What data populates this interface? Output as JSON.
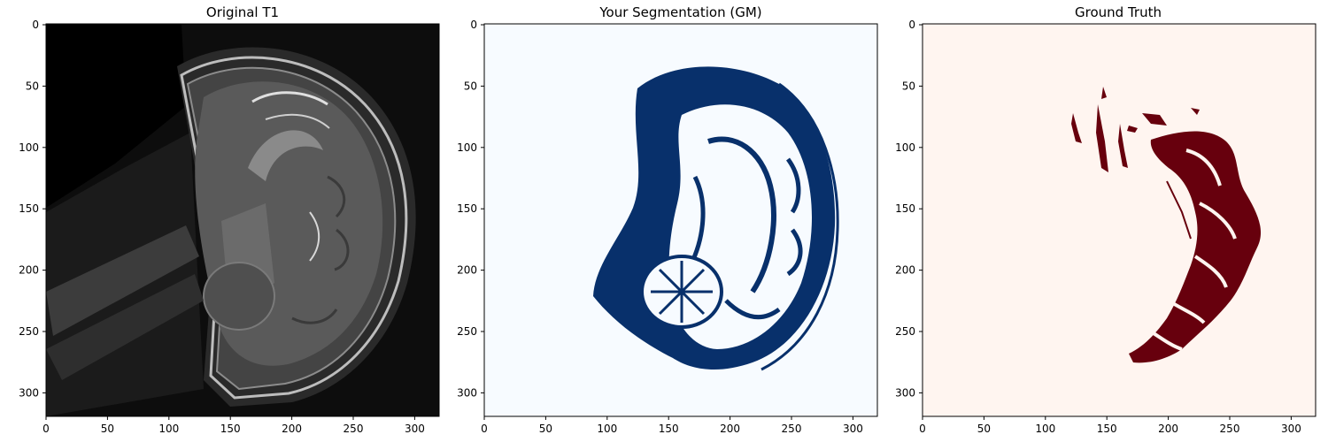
{
  "figure": {
    "panels": [
      {
        "title": "Original T1",
        "image": "t1-mri-sagittal-head",
        "image_type": "grayscale MRI (sagittal head slice)",
        "colors": {
          "background": "#000000",
          "tissue": "#5a5a5a"
        },
        "x_ticks": [
          "0",
          "50",
          "100",
          "150",
          "200",
          "250",
          "300"
        ],
        "y_ticks": [
          "0",
          "50",
          "100",
          "150",
          "200",
          "250",
          "300"
        ]
      },
      {
        "title": "Your Segmentation (GM)",
        "image": "gm-segmentation-mask",
        "image_type": "binary mask, Blues colormap",
        "colors": {
          "background": "#f7fbff",
          "mask": "#08306b"
        },
        "x_ticks": [
          "0",
          "50",
          "100",
          "150",
          "200",
          "250",
          "300"
        ],
        "y_ticks": [
          "0",
          "50",
          "100",
          "150",
          "200",
          "250",
          "300"
        ]
      },
      {
        "title": "Ground Truth",
        "image": "ground-truth-mask",
        "image_type": "binary mask, Reds colormap",
        "colors": {
          "background": "#fff5f0",
          "mask": "#67000d"
        },
        "x_ticks": [
          "0",
          "50",
          "100",
          "150",
          "200",
          "250",
          "300"
        ],
        "y_ticks": [
          "0",
          "50",
          "100",
          "150",
          "200",
          "250",
          "300"
        ]
      }
    ]
  }
}
